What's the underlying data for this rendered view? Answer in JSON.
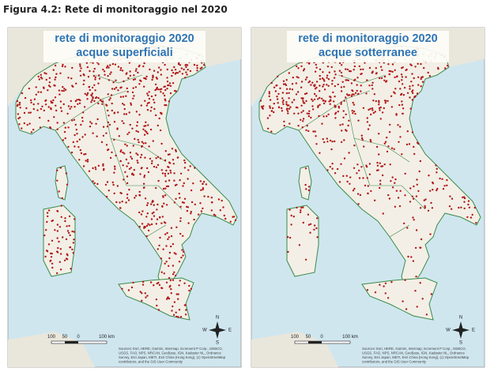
{
  "caption": "Figura 4.2: Rete di monitoraggio nel 2020",
  "panels": [
    {
      "title": [
        "rete di monitoraggio 2020",
        "acque superficiali"
      ],
      "scale": [
        "100",
        "50",
        "0",
        "100 km"
      ],
      "compass": [
        "N",
        "E",
        "S",
        "W"
      ],
      "attribution": [
        "Sources: Esri, HERE, Garmin, Intermap, increment P Corp., GEBCO,",
        "USGS, FAO, NPS, NRCAN, GeoBase, IGN, Kadaster NL, Ordnance",
        "Survey, Esri Japan, METI, Esri China (Hong Kong), (c) OpenStreetMap",
        "contributors, and the GIS User Community"
      ]
    },
    {
      "title": [
        "rete di monitoraggio 2020",
        "acque sotterranee"
      ],
      "scale": [
        "100",
        "50",
        "0",
        "100 km"
      ],
      "compass": [
        "N",
        "E",
        "S",
        "W"
      ],
      "attribution": [
        "Sources: Esri, HERE, Garmin, Intermap, increment P Corp., GEBCO,",
        "USGS, FAO, NPS, NRCAN, GeoBase, IGN, Kadaster NL, Ordnance",
        "Survey, Esri Japan, METI, Esri China (Hong Kong), (c) OpenStreetMap",
        "contributors, and the GIS User Community"
      ]
    }
  ]
}
